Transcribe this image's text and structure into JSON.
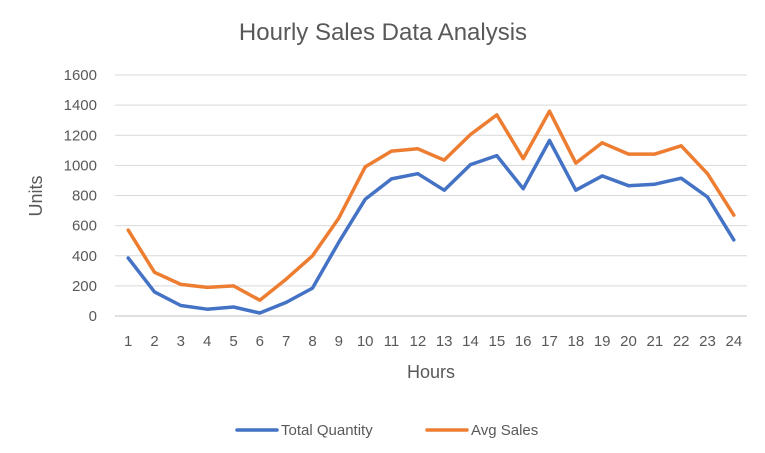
{
  "chart_data": {
    "type": "line",
    "title": "Hourly Sales Data Analysis",
    "xlabel": "Hours",
    "ylabel": "Units",
    "x": [
      1,
      2,
      3,
      4,
      5,
      6,
      7,
      8,
      9,
      10,
      11,
      12,
      13,
      14,
      15,
      16,
      17,
      18,
      19,
      20,
      21,
      22,
      23,
      24
    ],
    "ylim": [
      0,
      1600
    ],
    "yticks": [
      0,
      200,
      400,
      600,
      800,
      1000,
      1200,
      1400,
      1600
    ],
    "grid": true,
    "legend_position": "bottom",
    "series": [
      {
        "name": "Total Quantity",
        "color": "#4472C4",
        "values": [
          385,
          160,
          70,
          45,
          60,
          20,
          90,
          185,
          490,
          775,
          910,
          945,
          835,
          1005,
          1065,
          845,
          1165,
          835,
          930,
          865,
          875,
          915,
          790,
          505
        ]
      },
      {
        "name": "Avg Sales",
        "color": "#ED7D31",
        "values": [
          570,
          290,
          210,
          190,
          200,
          105,
          245,
          400,
          650,
          990,
          1095,
          1110,
          1035,
          1205,
          1335,
          1045,
          1360,
          1015,
          1150,
          1075,
          1075,
          1130,
          945,
          670
        ]
      }
    ]
  }
}
